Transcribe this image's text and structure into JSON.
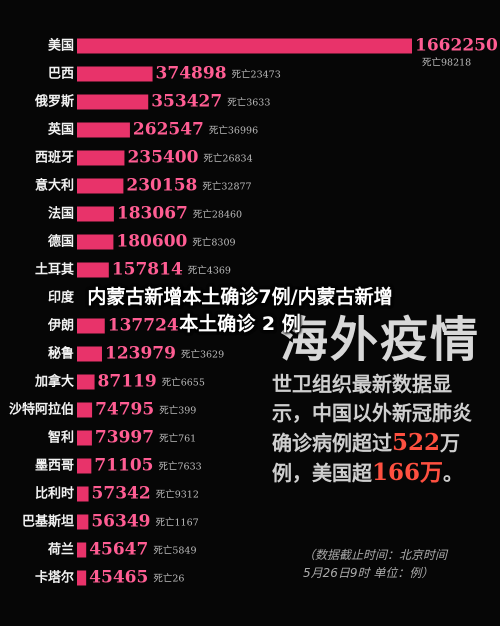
{
  "chart_data": {
    "type": "bar",
    "orientation": "horizontal",
    "categories": [
      "美国",
      "巴西",
      "俄罗斯",
      "英国",
      "西班牙",
      "意大利",
      "法国",
      "德国",
      "土耳其",
      "印度",
      "伊朗",
      "秘鲁",
      "加拿大",
      "沙特阿拉伯",
      "智利",
      "墨西哥",
      "比利时",
      "巴基斯坦",
      "荷兰",
      "卡塔尔"
    ],
    "values": [
      1662250,
      374898,
      353427,
      262547,
      235400,
      230158,
      183067,
      180600,
      157814,
      null,
      137724,
      123979,
      87119,
      74795,
      73997,
      71105,
      57342,
      56349,
      45647,
      45465
    ],
    "death_labels": [
      "死亡98218",
      "死亡23473",
      "死亡3633",
      "死亡36996",
      "死亡26834",
      "死亡32877",
      "死亡28460",
      "死亡8309",
      "死亡4369",
      null,
      null,
      "死亡3629",
      "死亡6655",
      "死亡399",
      "死亡761",
      "死亡7633",
      "死亡9312",
      "死亡1167",
      "死亡5849",
      "死亡26"
    ],
    "color": "#e8336a",
    "xlim": [
      0,
      1662250
    ]
  },
  "overlay_title": [
    "内蒙古新增本土确诊7例/内蒙古新增",
    "本土确诊 2 例"
  ],
  "heading": "海外疫情",
  "description": {
    "parts": [
      {
        "text": "世卫组织最新数据显示，中国以外新冠肺炎确诊病例超过"
      },
      {
        "text": "522",
        "highlight": true
      },
      {
        "text": "万例，美国超"
      },
      {
        "text": "166万",
        "highlight": true
      },
      {
        "text": "。"
      }
    ]
  },
  "note": [
    "（数据截止时间：北京时间",
    "5月26日9时  单位：例）"
  ]
}
